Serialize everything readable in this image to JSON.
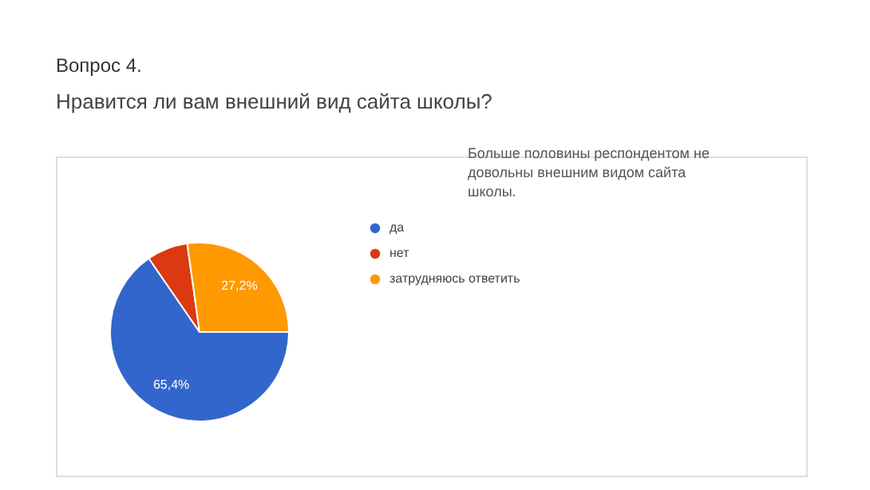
{
  "chart_data": {
    "type": "pie",
    "title": "Вопрос 4.",
    "subtitle": "Нравится ли вам внешний вид сайта школы?",
    "categories": [
      "да",
      "нет",
      "затрудняюсь ответить"
    ],
    "values": [
      65.4,
      7.4,
      27.2
    ],
    "colors": [
      "#3366cc",
      "#dc3912",
      "#ff9900"
    ],
    "value_labels": [
      "65,4%",
      null,
      "27,2%"
    ],
    "annotations": [
      "Больше половины респондентом не довольны внешним видом сайта школы."
    ],
    "legend": "right"
  }
}
